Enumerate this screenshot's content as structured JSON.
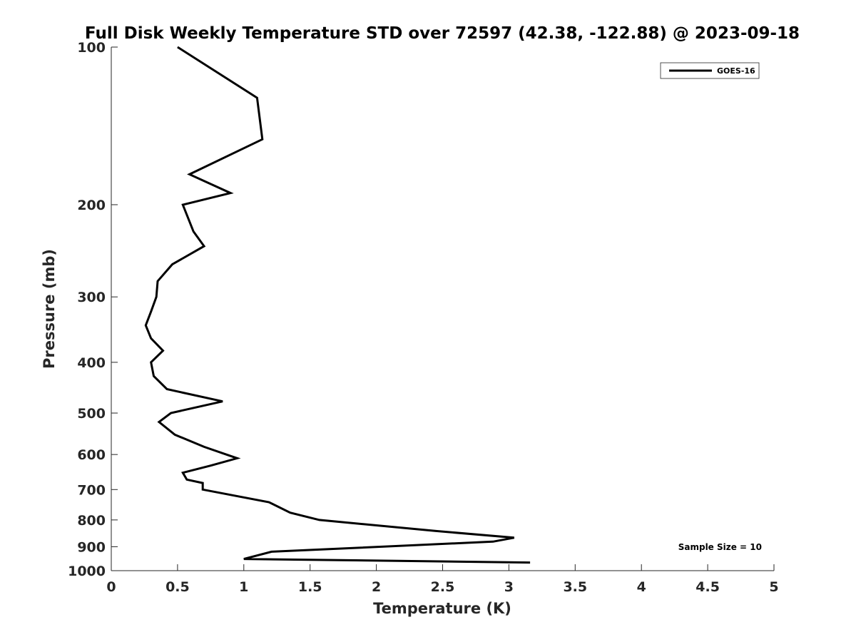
{
  "chart_data": {
    "type": "line",
    "title": "Full Disk Weekly Temperature STD over 72597 (42.38, -122.88) @ 2023-09-18",
    "xlabel": "Temperature (K)",
    "ylabel": "Pressure (mb)",
    "xlim": [
      0,
      5
    ],
    "ylim": [
      100,
      1000
    ],
    "y_scale": "log",
    "y_reversed": true,
    "x_ticks": [
      "0",
      "0.5",
      "1",
      "1.5",
      "2",
      "2.5",
      "3",
      "3.5",
      "4",
      "4.5",
      "5"
    ],
    "y_ticks": [
      "100",
      "200",
      "300",
      "400",
      "500",
      "600",
      "700",
      "800",
      "900",
      "1000"
    ],
    "grid": false,
    "legend_position": "top-right",
    "annotation": "Sample Size = 10",
    "series": [
      {
        "name": "GOES-16",
        "color": "#000000",
        "points": [
          [
            0.5,
            100
          ],
          [
            1.1,
            125
          ],
          [
            1.14,
            150
          ],
          [
            0.59,
            175
          ],
          [
            0.9,
            190
          ],
          [
            0.54,
            200
          ],
          [
            0.62,
            225
          ],
          [
            0.7,
            240
          ],
          [
            0.46,
            260
          ],
          [
            0.35,
            280
          ],
          [
            0.34,
            300
          ],
          [
            0.3,
            320
          ],
          [
            0.26,
            340
          ],
          [
            0.3,
            360
          ],
          [
            0.39,
            380
          ],
          [
            0.3,
            400
          ],
          [
            0.32,
            425
          ],
          [
            0.42,
            450
          ],
          [
            0.84,
            475
          ],
          [
            0.45,
            500
          ],
          [
            0.36,
            520
          ],
          [
            0.48,
            550
          ],
          [
            0.7,
            580
          ],
          [
            0.95,
            610
          ],
          [
            0.75,
            630
          ],
          [
            0.54,
            650
          ],
          [
            0.57,
            670
          ],
          [
            0.69,
            680
          ],
          [
            0.69,
            700
          ],
          [
            1.19,
            740
          ],
          [
            1.35,
            775
          ],
          [
            1.57,
            800
          ],
          [
            2.45,
            840
          ],
          [
            3.04,
            865
          ],
          [
            2.88,
            880
          ],
          [
            1.21,
            920
          ],
          [
            1.0,
            950
          ],
          [
            3.16,
            965
          ]
        ]
      }
    ]
  }
}
